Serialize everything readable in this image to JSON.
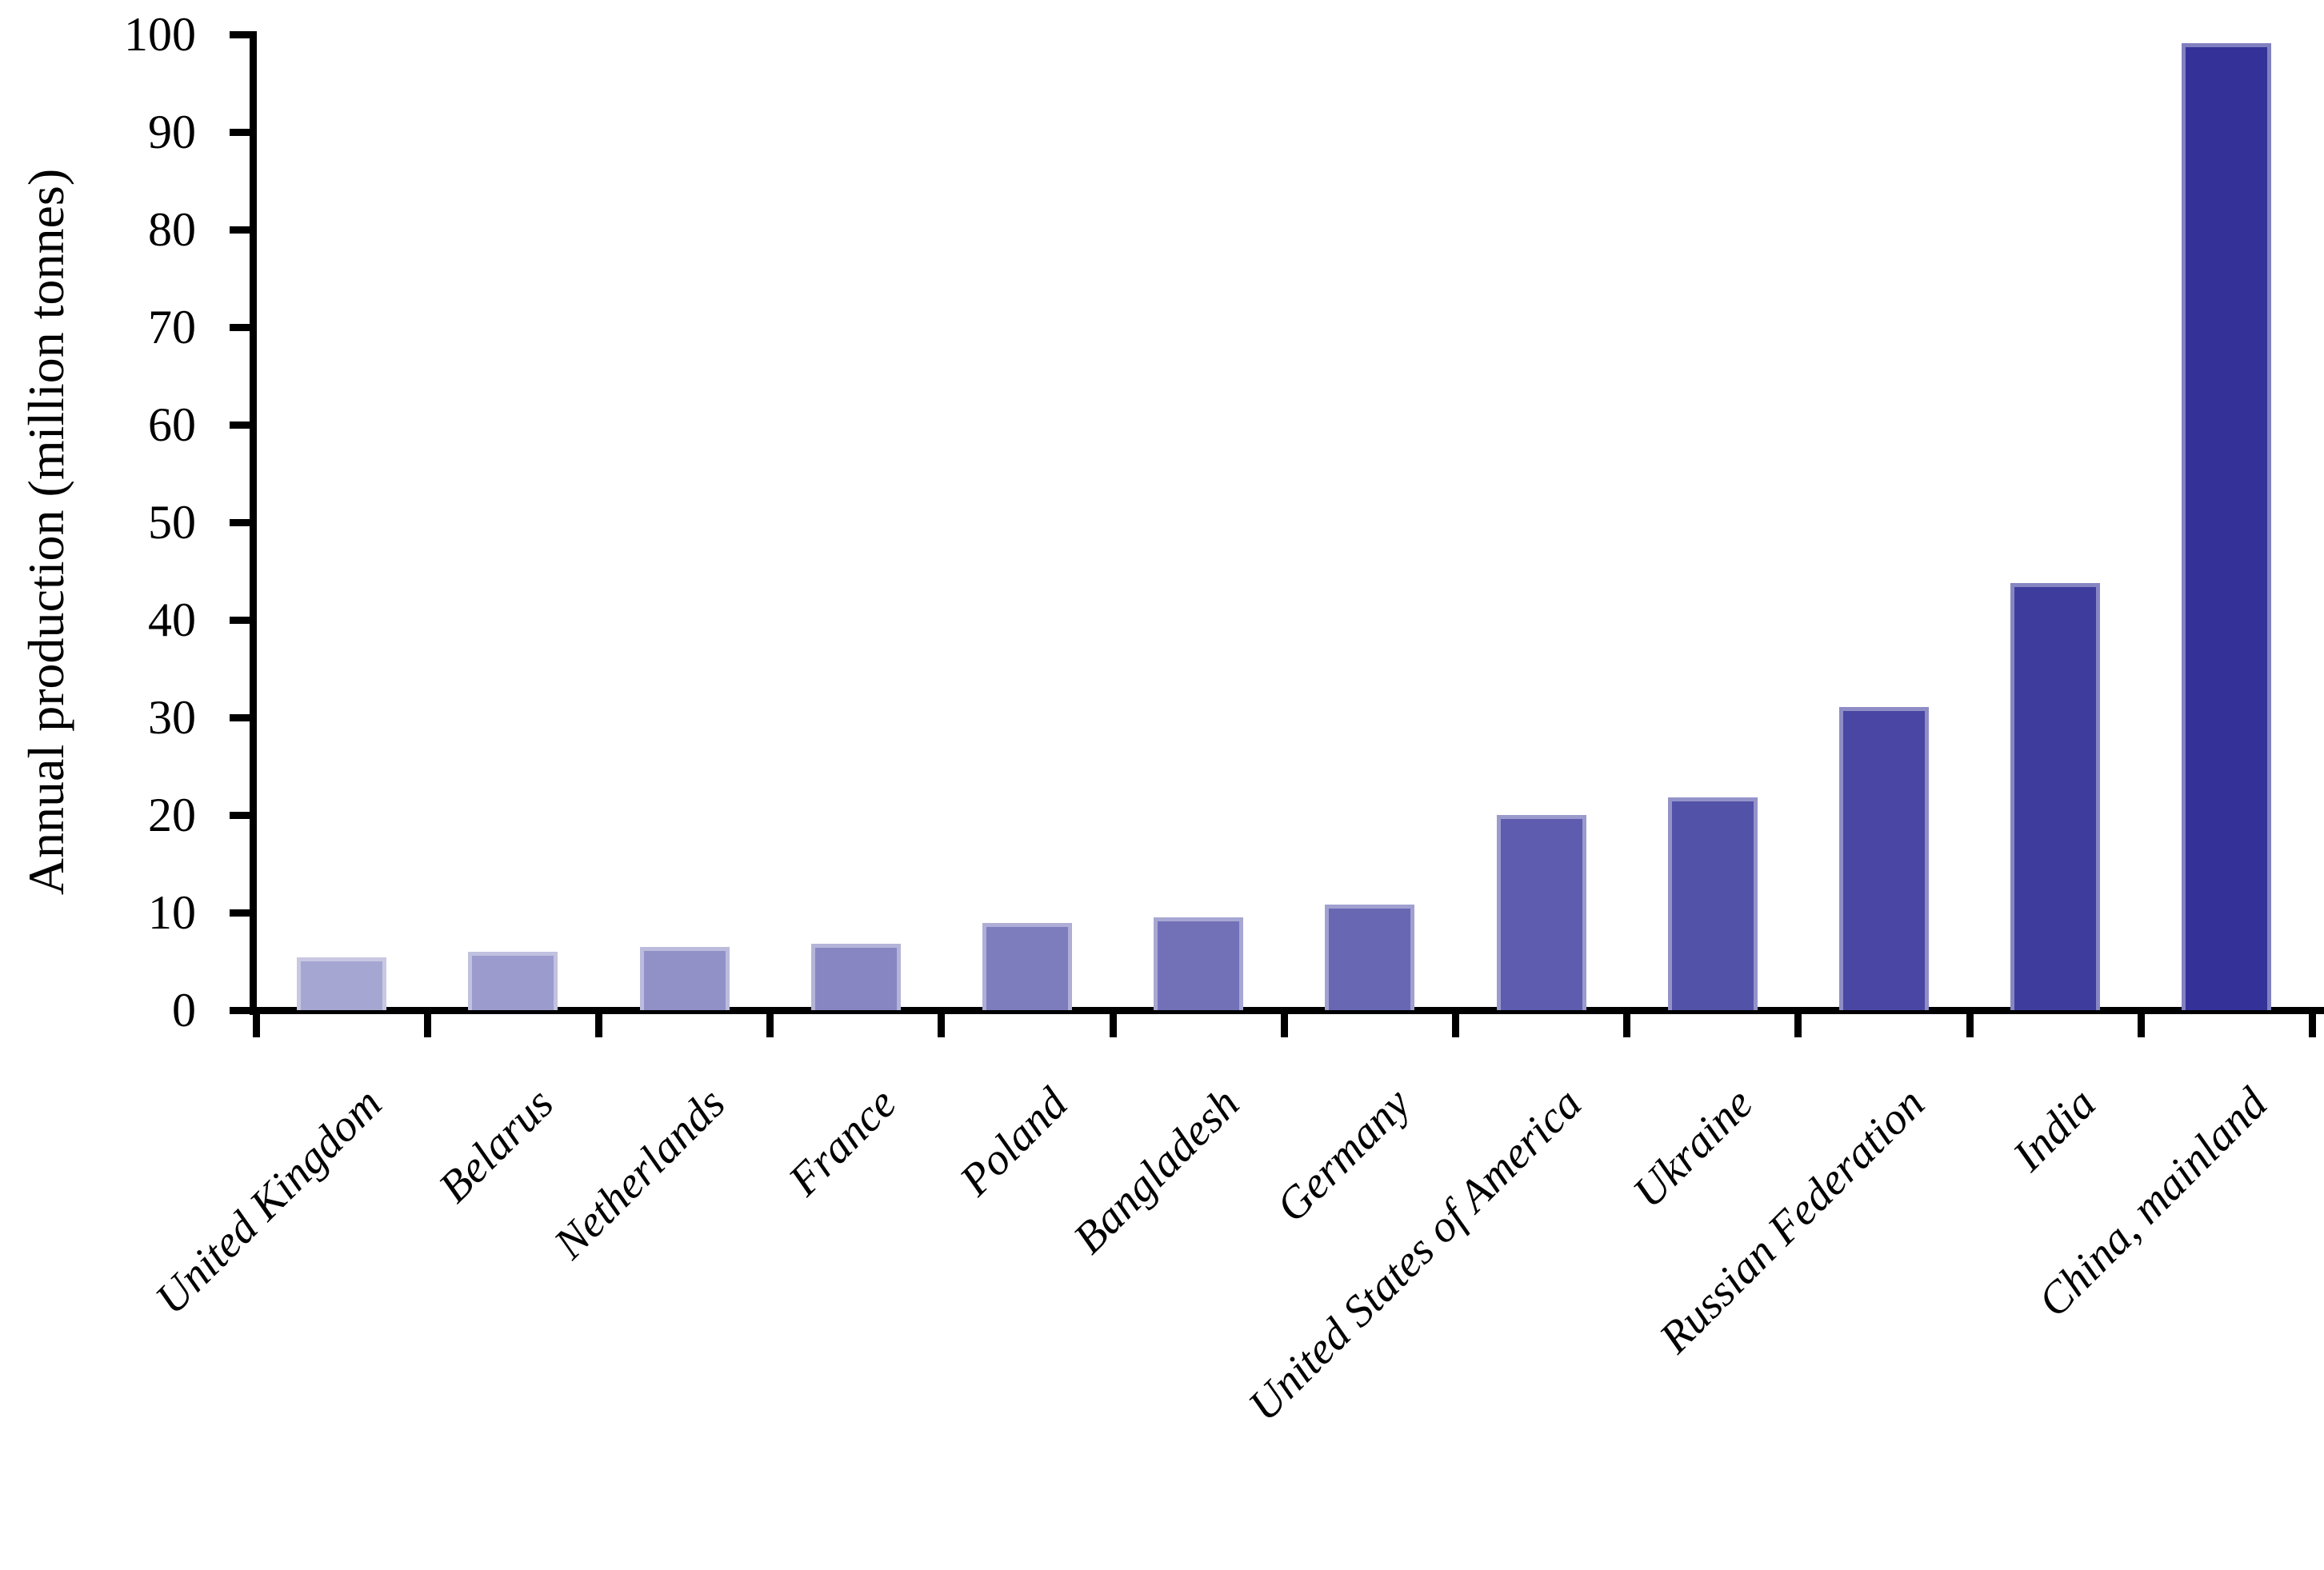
{
  "chart_data": {
    "type": "bar",
    "title": "",
    "xlabel": "",
    "ylabel": "Annual production (million tonnes)",
    "categories": [
      "United Kingdom",
      "Belarus",
      "Netherlands",
      "France",
      "Poland",
      "Bangladesh",
      "Germany",
      "United States of America",
      "Ukraine",
      "Russian Federation",
      "India",
      "China, mainland"
    ],
    "values": [
      5.4,
      6.0,
      6.5,
      6.8,
      8.9,
      9.5,
      10.8,
      20.0,
      21.8,
      31.1,
      43.8,
      99.1
    ],
    "ylim": [
      0,
      100
    ],
    "yticks": [
      0,
      10,
      20,
      30,
      40,
      50,
      60,
      70,
      80,
      90,
      100
    ],
    "grid": false,
    "legend_position": "none",
    "bar_color_start": "#A6A6D2",
    "bar_color_end": "#343299",
    "axis_color": "#000000",
    "background_color": "#FFFFFF",
    "x_label_rotation_deg": 45,
    "x_label_style": "italic"
  }
}
